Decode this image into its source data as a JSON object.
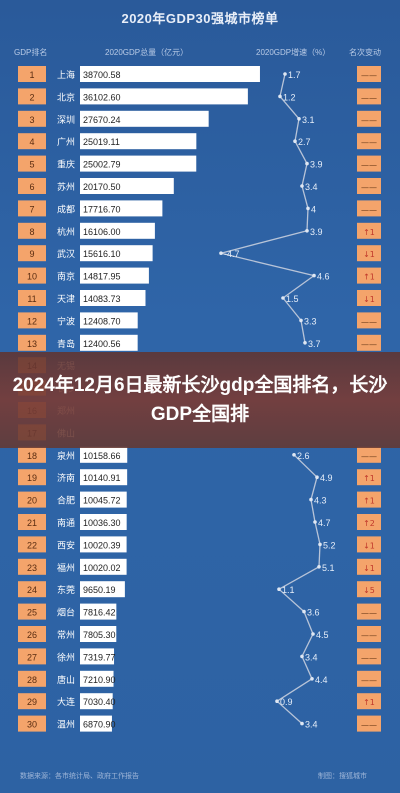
{
  "header": {
    "title": "2020年GDP30强城市榜单",
    "col_rank": "GDP排名",
    "col_total": "2020GDP总量（亿元）",
    "col_growth": "2020GDP增速（%）",
    "col_change": "名次变动"
  },
  "banner": {
    "text": "2024年12月6日最新长沙gdp全国排名，长沙GDP全国排"
  },
  "footer": {
    "source": "数据来源：各市统计局、政府工作报告",
    "maker": "制图：搜狐城市"
  },
  "colors": {
    "rank_badge": "#f4a46b",
    "bar_white": "#ffffff",
    "line": "#b8c4d8",
    "change_up": "#c0392b"
  },
  "chart_data": {
    "type": "bar",
    "title": "2020年GDP30强城市榜单",
    "xlabel": "2020GDP总量（亿元）",
    "ylabel": "GDP排名",
    "categories": [
      "上海",
      "北京",
      "深圳",
      "广州",
      "重庆",
      "苏州",
      "成都",
      "杭州",
      "武汉",
      "南京",
      "天津",
      "宁波",
      "青岛",
      "无锡",
      "长沙",
      "郑州",
      "佛山",
      "泉州",
      "济南",
      "合肥",
      "南通",
      "西安",
      "福州",
      "东莞",
      "烟台",
      "常州",
      "徐州",
      "唐山",
      "大连",
      "温州"
    ],
    "ranks": [
      1,
      2,
      3,
      4,
      5,
      6,
      7,
      8,
      9,
      10,
      11,
      12,
      13,
      14,
      15,
      16,
      17,
      18,
      19,
      20,
      21,
      22,
      23,
      24,
      25,
      26,
      27,
      28,
      29,
      30
    ],
    "series": [
      {
        "name": "2020GDP总量（亿元）",
        "values": [
          38700.58,
          36102.6,
          27670.24,
          25019.11,
          25002.79,
          20170.5,
          17716.7,
          16106.0,
          15616.1,
          14817.95,
          14083.73,
          12408.7,
          12400.56,
          null,
          null,
          null,
          null,
          10158.66,
          10140.91,
          10045.72,
          10036.3,
          10020.39,
          10020.02,
          9650.19,
          7816.42,
          7805.3,
          7319.77,
          7210.9,
          7030.4,
          6870.9
        ],
        "labels": [
          "38700.58",
          "36102.60",
          "27670.24",
          "25019.11",
          "25002.79",
          "20170.50",
          "17716.70",
          "16106.00",
          "15616.10",
          "14817.95",
          "14083.73",
          "12408.70",
          "12400.56",
          "",
          "",
          "",
          "",
          "10158.66",
          "10140.91",
          "10045.72",
          "10036.30",
          "10020.39",
          "10020.02",
          "9650.19",
          "7816.42",
          "7805.30",
          "7319.77",
          "7210.90",
          "7030.40",
          "6870.90"
        ]
      },
      {
        "name": "2020GDP增速（%）",
        "values": [
          1.7,
          1.2,
          3.1,
          2.7,
          3.9,
          3.4,
          4,
          3.9,
          -4.7,
          4.6,
          1.5,
          3.3,
          3.7,
          null,
          null,
          null,
          null,
          2.6,
          4.9,
          4.3,
          4.7,
          5.2,
          5.1,
          1.1,
          3.6,
          4.5,
          3.4,
          4.4,
          0.9,
          3.4
        ],
        "labels": [
          "1.7",
          "1.2",
          "3.1",
          "2.7",
          "3.9",
          "3.4",
          "4",
          "3.9",
          "-4.7",
          "4.6",
          "1.5",
          "3.3",
          "3.7",
          "",
          "",
          "",
          "",
          "2.6",
          "4.9",
          "4.3",
          "4.7",
          "5.2",
          "5.1",
          "1.1",
          "3.6",
          "4.5",
          "3.4",
          "4.4",
          "0.9",
          "3.4"
        ]
      }
    ],
    "rank_change": [
      "——",
      "——",
      "——",
      "——",
      "——",
      "——",
      "——",
      "↑1",
      "↓1",
      "↑1",
      "↓1",
      "——",
      "——",
      "",
      "",
      "",
      "",
      "——",
      "↑1",
      "↑1",
      "↑2",
      "↓1",
      "↓1",
      "↓5",
      "——",
      "——",
      "——",
      "——",
      "↑1",
      "——"
    ],
    "xlim": [
      0,
      40000
    ],
    "growth_lim": [
      -5,
      6
    ]
  }
}
